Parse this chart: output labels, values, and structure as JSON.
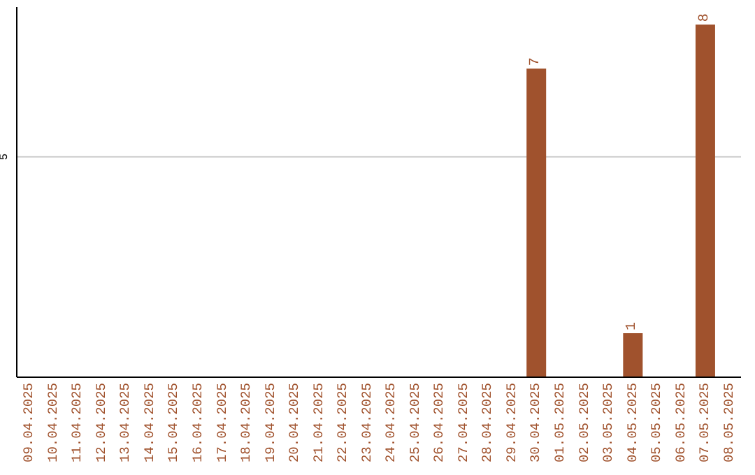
{
  "chart_data": {
    "type": "bar",
    "categories": [
      "09.04.2025",
      "10.04.2025",
      "11.04.2025",
      "12.04.2025",
      "13.04.2025",
      "14.04.2025",
      "15.04.2025",
      "16.04.2025",
      "17.04.2025",
      "18.04.2025",
      "19.04.2025",
      "20.04.2025",
      "21.04.2025",
      "22.04.2025",
      "23.04.2025",
      "24.04.2025",
      "25.04.2025",
      "26.04.2025",
      "27.04.2025",
      "28.04.2025",
      "29.04.2025",
      "30.04.2025",
      "01.05.2025",
      "02.05.2025",
      "03.05.2025",
      "04.05.2025",
      "05.05.2025",
      "06.05.2025",
      "07.05.2025",
      "08.05.2025"
    ],
    "values": [
      null,
      null,
      null,
      null,
      null,
      null,
      null,
      null,
      null,
      null,
      null,
      null,
      null,
      null,
      null,
      null,
      null,
      null,
      null,
      null,
      null,
      7,
      null,
      null,
      null,
      1,
      null,
      null,
      8,
      null
    ],
    "data_labels": true,
    "color": "#a0522d",
    "ylim": [
      0,
      8.4
    ],
    "yticks": [
      5
    ],
    "grid": "y",
    "legend": false
  }
}
